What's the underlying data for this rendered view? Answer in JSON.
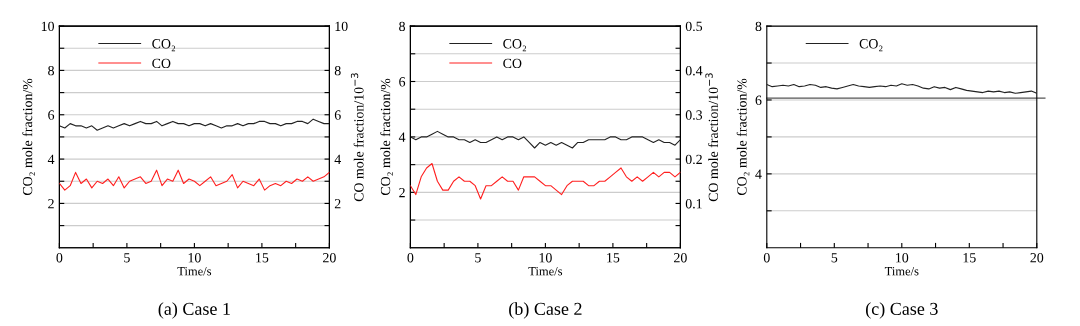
{
  "chart_data": [
    {
      "type": "line",
      "title": "(a) Case 1",
      "xlabel": "Time/s",
      "ylabel": "CO₂ mole fraction/%",
      "y2label": "CO mole fraction/10$^{−3}$",
      "x": [
        0,
        0.4,
        0.8,
        1.2,
        1.6,
        2,
        2.4,
        2.8,
        3.2,
        3.6,
        4,
        4.4,
        4.8,
        5.2,
        5.6,
        6,
        6.4,
        6.8,
        7.2,
        7.6,
        8,
        8.4,
        8.8,
        9.2,
        9.6,
        10,
        10.4,
        10.8,
        11.2,
        11.6,
        12,
        12.4,
        12.8,
        13.2,
        13.6,
        14,
        14.4,
        14.8,
        15.2,
        15.6,
        16,
        16.4,
        16.8,
        17.2,
        17.6,
        18,
        18.4,
        18.8,
        19.2,
        19.6,
        20
      ],
      "xlim": [
        0,
        20
      ],
      "xticks": [
        0,
        {
          "value": 2.5,
          "label": null
        },
        5,
        {
          "value": 7.5,
          "label": null
        },
        10,
        {
          "value": 12.5,
          "label": null
        },
        15,
        {
          "value": 17.5,
          "label": null
        },
        20
      ],
      "ylim": [
        0,
        10
      ],
      "yticks": [
        {
          "value": 1,
          "label": null
        },
        2,
        {
          "value": 3,
          "label": null
        },
        4,
        {
          "value": 5,
          "label": null
        },
        6,
        {
          "value": 7,
          "label": null
        },
        8,
        {
          "value": 9,
          "label": null
        },
        10
      ],
      "y2lim": [
        0,
        10
      ],
      "y2ticks": [
        {
          "value": 1,
          "label": null
        },
        2,
        {
          "value": 3,
          "label": null
        },
        4,
        {
          "value": 5,
          "label": null
        },
        6,
        {
          "value": 7,
          "label": null
        },
        8,
        {
          "value": 9,
          "label": null
        },
        10
      ],
      "grid": "y",
      "legend": "top left",
      "series": [
        {
          "name": "CO₂",
          "color": "#222222",
          "values": [
            5.5,
            5.4,
            5.6,
            5.5,
            5.5,
            5.4,
            5.5,
            5.3,
            5.4,
            5.5,
            5.4,
            5.5,
            5.6,
            5.5,
            5.6,
            5.7,
            5.6,
            5.6,
            5.7,
            5.5,
            5.6,
            5.7,
            5.6,
            5.6,
            5.5,
            5.6,
            5.6,
            5.5,
            5.6,
            5.5,
            5.4,
            5.5,
            5.5,
            5.6,
            5.5,
            5.6,
            5.6,
            5.7,
            5.7,
            5.6,
            5.6,
            5.5,
            5.6,
            5.6,
            5.7,
            5.7,
            5.6,
            5.8,
            5.7,
            5.6,
            5.6
          ]
        },
        {
          "name": "CO",
          "color": "#ff2020",
          "axis": "y2",
          "values": [
            2.9,
            2.6,
            2.8,
            3.4,
            2.9,
            3.1,
            2.7,
            3.0,
            2.9,
            3.1,
            2.8,
            3.2,
            2.7,
            3.0,
            3.1,
            3.2,
            2.9,
            3.0,
            3.5,
            2.8,
            3.1,
            3.0,
            3.5,
            2.9,
            3.1,
            3.0,
            2.8,
            3.0,
            3.2,
            2.8,
            2.9,
            3.0,
            3.3,
            2.7,
            3.0,
            2.9,
            2.8,
            3.1,
            2.6,
            2.8,
            2.9,
            2.8,
            3.0,
            2.9,
            3.1,
            3.0,
            3.2,
            3.0,
            3.1,
            3.2,
            3.4
          ]
        }
      ]
    },
    {
      "type": "line",
      "title": "(b) Case 2",
      "xlabel": "Time/s",
      "ylabel": "CO₂ mole fraction/%",
      "y2label": "CO mole fraction/10$^{−3}$",
      "x": [
        0,
        0.4,
        0.8,
        1.2,
        1.6,
        2,
        2.4,
        2.8,
        3.2,
        3.6,
        4,
        4.4,
        4.8,
        5.2,
        5.6,
        6,
        6.4,
        6.8,
        7.2,
        7.6,
        8,
        8.4,
        8.8,
        9.2,
        9.6,
        10,
        10.4,
        10.8,
        11.2,
        11.6,
        12,
        12.4,
        12.8,
        13.2,
        13.6,
        14,
        14.4,
        14.8,
        15.2,
        15.6,
        16,
        16.4,
        16.8,
        17.2,
        17.6,
        18,
        18.4,
        18.8,
        19.2,
        19.6,
        20
      ],
      "xlim": [
        0,
        20
      ],
      "xticks": [
        0,
        {
          "value": 2.5,
          "label": null
        },
        5,
        {
          "value": 7.5,
          "label": null
        },
        10,
        {
          "value": 12.5,
          "label": null
        },
        15,
        {
          "value": 17.5,
          "label": null
        },
        20
      ],
      "ylim": [
        0,
        8
      ],
      "yticks": [
        {
          "value": 1,
          "label": null
        },
        2,
        {
          "value": 3,
          "label": null
        },
        4,
        {
          "value": 5,
          "label": null
        },
        6,
        {
          "value": 7,
          "label": null
        },
        8
      ],
      "y2lim": [
        0,
        0.5
      ],
      "y2ticks": [
        {
          "value": 0.05,
          "label": null
        },
        0.1,
        {
          "value": 0.15,
          "label": null
        },
        0.2,
        {
          "value": 0.25,
          "label": null
        },
        0.3,
        {
          "value": 0.35,
          "label": null
        },
        0.4,
        {
          "value": 0.45,
          "label": null
        },
        0.5
      ],
      "grid": "y",
      "legend": "top left",
      "series": [
        {
          "name": "CO₂",
          "color": "#222222",
          "values": [
            4.0,
            3.9,
            4.0,
            4.0,
            4.1,
            4.2,
            4.1,
            4.0,
            4.0,
            3.9,
            3.9,
            3.8,
            3.9,
            3.8,
            3.8,
            3.9,
            4.0,
            3.9,
            4.0,
            4.0,
            3.9,
            4.0,
            3.8,
            3.6,
            3.8,
            3.7,
            3.8,
            3.7,
            3.8,
            3.7,
            3.6,
            3.8,
            3.8,
            3.9,
            3.9,
            3.9,
            3.9,
            4.0,
            4.0,
            3.9,
            3.9,
            4.0,
            4.0,
            4.0,
            3.9,
            3.8,
            3.9,
            3.8,
            3.8,
            3.7,
            3.9
          ]
        },
        {
          "name": "CO",
          "color": "#ff2020",
          "axis": "y2",
          "values": [
            0.14,
            0.12,
            0.16,
            0.18,
            0.19,
            0.15,
            0.13,
            0.13,
            0.15,
            0.16,
            0.15,
            0.15,
            0.14,
            0.11,
            0.14,
            0.14,
            0.15,
            0.16,
            0.15,
            0.15,
            0.13,
            0.16,
            0.16,
            0.16,
            0.15,
            0.14,
            0.14,
            0.13,
            0.12,
            0.14,
            0.15,
            0.15,
            0.15,
            0.14,
            0.14,
            0.15,
            0.15,
            0.16,
            0.17,
            0.18,
            0.16,
            0.15,
            0.16,
            0.15,
            0.16,
            0.17,
            0.16,
            0.17,
            0.17,
            0.16,
            0.17
          ]
        }
      ]
    },
    {
      "type": "line",
      "title": "(c) Case 3",
      "xlabel": "Time/s",
      "ylabel": "CO₂ mole fraction/%",
      "x": [
        0,
        0.4,
        0.8,
        1.2,
        1.6,
        2,
        2.4,
        2.8,
        3.2,
        3.6,
        4,
        4.4,
        4.8,
        5.2,
        5.6,
        6,
        6.4,
        6.8,
        7.2,
        7.6,
        8,
        8.4,
        8.8,
        9.2,
        9.6,
        10,
        10.4,
        10.8,
        11.2,
        11.6,
        12,
        12.4,
        12.8,
        13.2,
        13.6,
        14,
        14.4,
        14.8,
        15.2,
        15.6,
        16,
        16.4,
        16.8,
        17.2,
        17.6,
        18,
        18.4,
        18.8,
        19.2,
        19.6,
        20
      ],
      "xlim": [
        0,
        20
      ],
      "xticks": [
        0,
        {
          "value": 2.5,
          "label": null
        },
        5,
        {
          "value": 7.5,
          "label": null
        },
        10,
        {
          "value": 12.5,
          "label": null
        },
        15,
        {
          "value": 17.5,
          "label": null
        },
        20
      ],
      "ylim": [
        2,
        8
      ],
      "yticks": [
        {
          "value": 3,
          "label": null
        },
        4,
        {
          "value": 5,
          "label": null
        },
        6,
        {
          "value": 7,
          "label": null
        },
        8
      ],
      "grid": "y",
      "legend": "top left",
      "ref_lines": [
        {
          "axis": "y",
          "value": 6.05,
          "color": "#555555"
        }
      ],
      "series": [
        {
          "name": "CO₂",
          "color": "#222222",
          "values": [
            6.42,
            6.36,
            6.38,
            6.4,
            6.38,
            6.42,
            6.36,
            6.38,
            6.42,
            6.4,
            6.34,
            6.36,
            6.32,
            6.3,
            6.34,
            6.38,
            6.42,
            6.38,
            6.36,
            6.34,
            6.36,
            6.38,
            6.36,
            6.4,
            6.38,
            6.44,
            6.4,
            6.42,
            6.38,
            6.32,
            6.3,
            6.36,
            6.32,
            6.34,
            6.28,
            6.34,
            6.3,
            6.26,
            6.24,
            6.22,
            6.2,
            6.24,
            6.22,
            6.24,
            6.2,
            6.22,
            6.18,
            6.2,
            6.22,
            6.24,
            6.18
          ]
        }
      ]
    }
  ]
}
